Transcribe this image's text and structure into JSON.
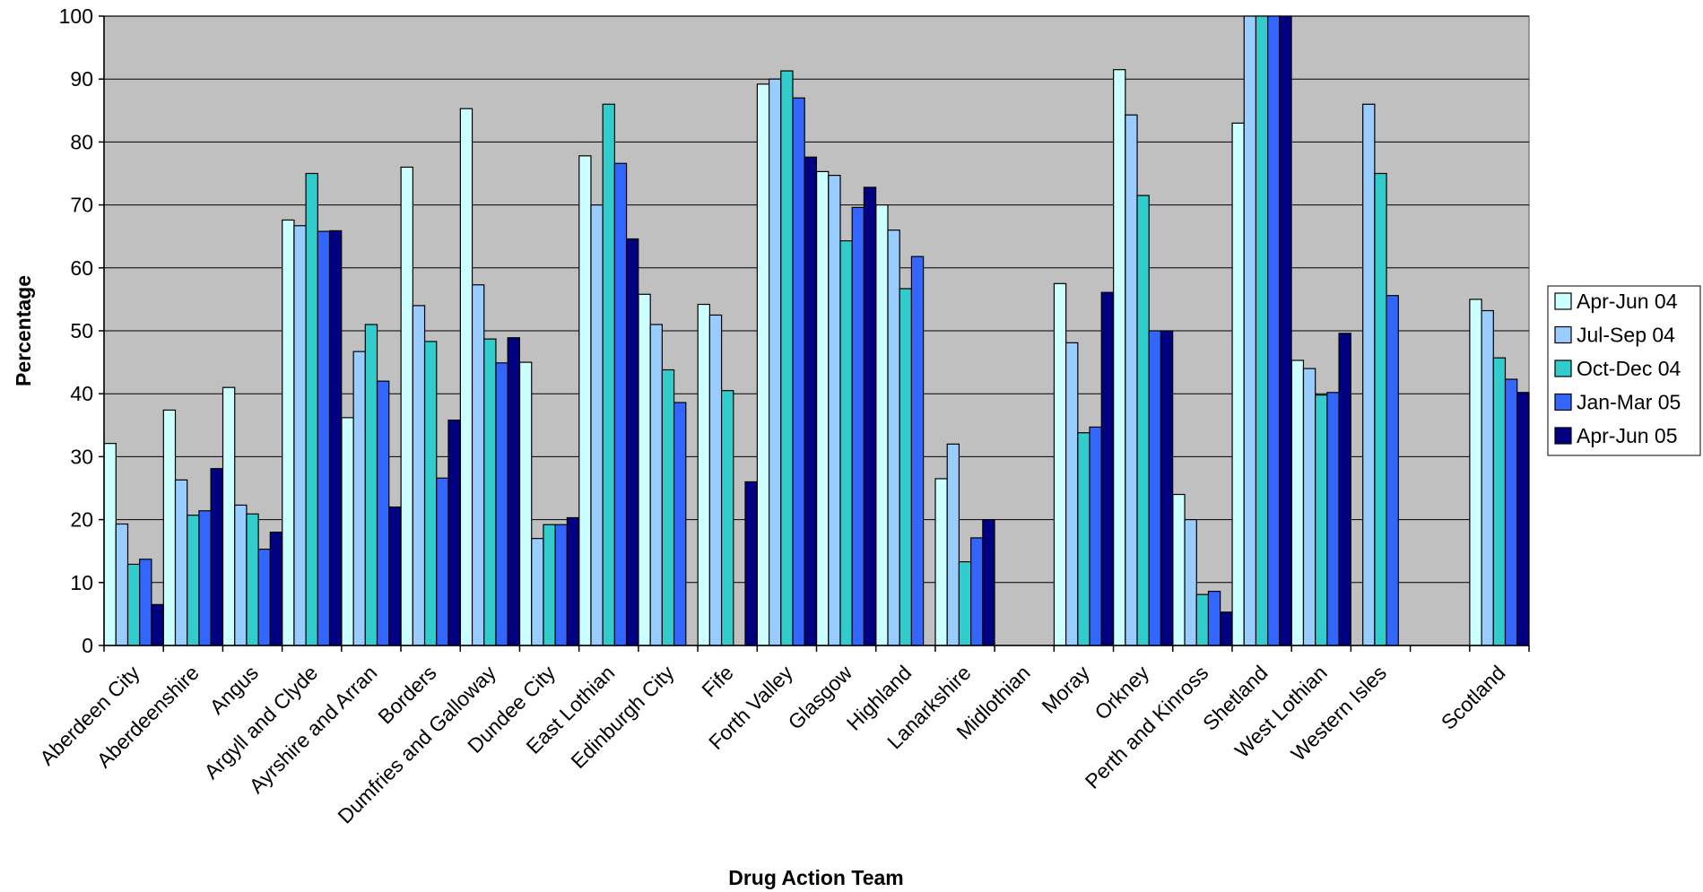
{
  "chart_data": {
    "type": "bar",
    "title": "",
    "xlabel": "Drug Action Team",
    "ylabel": "Percentage",
    "ylim": [
      0,
      100
    ],
    "yticks": [
      0,
      10,
      20,
      30,
      40,
      50,
      60,
      70,
      80,
      90,
      100
    ],
    "grid": true,
    "legend_position": "right",
    "categories": [
      "Aberdeen City",
      "Aberdeenshire",
      "Angus",
      "Argyll and Clyde",
      "Ayrshire and Arran",
      "Borders",
      "Dumfries and Galloway",
      "Dundee City",
      "East Lothian",
      "Edinburgh City",
      "Fife",
      "Forth Valley",
      "Glasgow",
      "Highland",
      "Lanarkshire",
      "Midlothian",
      "Moray",
      "Orkney",
      "Perth and Kinross",
      "Shetland",
      "West Lothian",
      "Western Isles",
      "",
      "Scotland"
    ],
    "series": [
      {
        "name": "Apr-Jun 04",
        "color": "#CCFFFF",
        "values": [
          32.1,
          37.4,
          41.0,
          67.6,
          36.2,
          76.0,
          85.3,
          45.0,
          77.8,
          55.8,
          54.2,
          89.2,
          75.3,
          70.0,
          26.5,
          null,
          57.5,
          91.5,
          24.0,
          83.0,
          45.3,
          null,
          null,
          55.0
        ]
      },
      {
        "name": "Jul-Sep 04",
        "color": "#99CCFF",
        "values": [
          19.3,
          26.3,
          22.3,
          66.7,
          46.7,
          54.0,
          57.3,
          17.0,
          70.0,
          51.0,
          52.5,
          90.0,
          74.7,
          66.0,
          32.0,
          null,
          48.1,
          84.3,
          20.0,
          100,
          44.0,
          86.0,
          null,
          53.2
        ]
      },
      {
        "name": "Oct-Dec 04",
        "color": "#33CCCC",
        "values": [
          12.9,
          20.7,
          20.9,
          75.0,
          51.0,
          48.3,
          48.7,
          19.2,
          86.0,
          43.8,
          40.5,
          91.3,
          64.3,
          56.7,
          13.3,
          null,
          33.8,
          71.5,
          8.1,
          100,
          39.8,
          75.0,
          null,
          45.7
        ]
      },
      {
        "name": "Jan-Mar 05",
        "color": "#3366FF",
        "values": [
          13.7,
          21.4,
          15.3,
          65.8,
          42.0,
          26.6,
          44.9,
          19.2,
          76.6,
          38.6,
          null,
          87.0,
          69.6,
          61.8,
          17.1,
          null,
          34.7,
          50.0,
          8.6,
          100,
          40.2,
          55.6,
          null,
          42.3
        ]
      },
      {
        "name": "Apr-Jun 05",
        "color": "#000080",
        "values": [
          6.5,
          28.1,
          18.0,
          65.9,
          22.0,
          35.8,
          48.9,
          20.3,
          64.6,
          null,
          26.0,
          77.6,
          72.8,
          null,
          20.0,
          null,
          56.1,
          50.0,
          5.3,
          100,
          49.6,
          null,
          null,
          40.2
        ]
      }
    ]
  }
}
